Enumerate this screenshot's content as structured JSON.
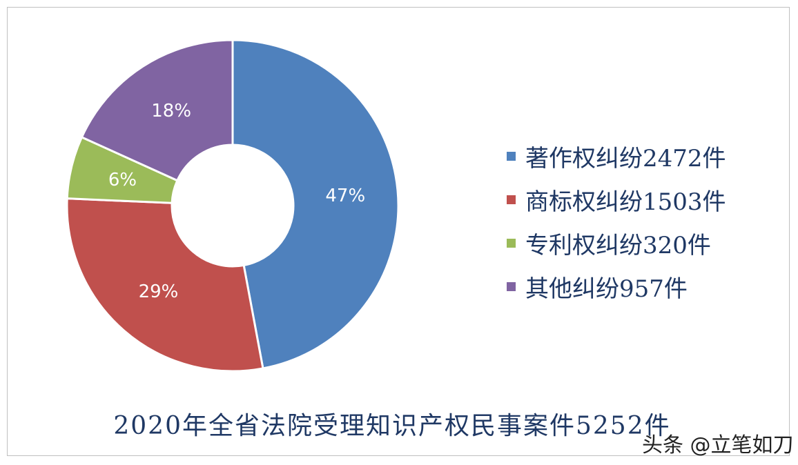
{
  "chart_data": {
    "type": "pie",
    "donut": true,
    "title": "2020年全省法院受理知识产权民事案件5252件",
    "categories": [
      "著作权纠纷2472件",
      "商标权纠纷1503件",
      "专利权纠纷320件",
      "其他纠纷957件"
    ],
    "values": [
      2472,
      1503,
      320,
      957
    ],
    "data_labels": [
      "47%",
      "29%",
      "6%",
      "18%"
    ],
    "colors": [
      "#4f81bd",
      "#c0504d",
      "#9bbb59",
      "#8064a2"
    ],
    "legend_position": "right"
  },
  "watermark": "头条 @立笔如刀"
}
